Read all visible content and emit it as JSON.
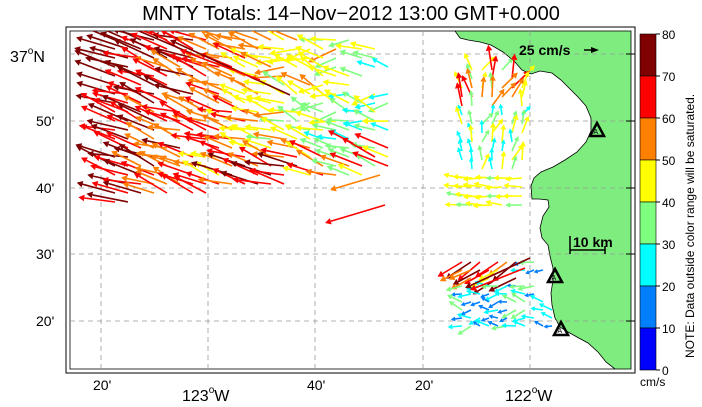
{
  "title": "MNTY Totals: 14−Nov−2012 13:00 GMT+0.000",
  "map": {
    "lat_labels": [
      {
        "deg": "37",
        "hemi": "N",
        "min": ""
      },
      {
        "deg": "",
        "hemi": "",
        "min": "50'"
      },
      {
        "deg": "",
        "hemi": "",
        "min": "40'"
      },
      {
        "deg": "",
        "hemi": "",
        "min": "30'"
      },
      {
        "deg": "",
        "hemi": "",
        "min": "20'"
      }
    ],
    "lon_labels_small": [
      "20'",
      "40'",
      "20'"
    ],
    "lon_labels_major": [
      {
        "deg": "123",
        "hemi": "W"
      },
      {
        "deg": "122",
        "hemi": "W"
      }
    ],
    "scale_vector_label": "25 cm/s",
    "scale_bar_label": "10 km",
    "land_color": "#7fec7f",
    "stations": [
      "station-north",
      "station-middle",
      "station-south"
    ]
  },
  "colorbar": {
    "ticks": [
      "80",
      "70",
      "60",
      "50",
      "40",
      "30",
      "20",
      "10",
      "0"
    ],
    "unit": "cm/s",
    "note": "NOTE: Data outside color range will be saturated.",
    "colors": [
      "#7f0000",
      "#ff0000",
      "#ff7f00",
      "#ffff00",
      "#7fff7f",
      "#00ffff",
      "#007fff",
      "#0000ff"
    ]
  }
}
